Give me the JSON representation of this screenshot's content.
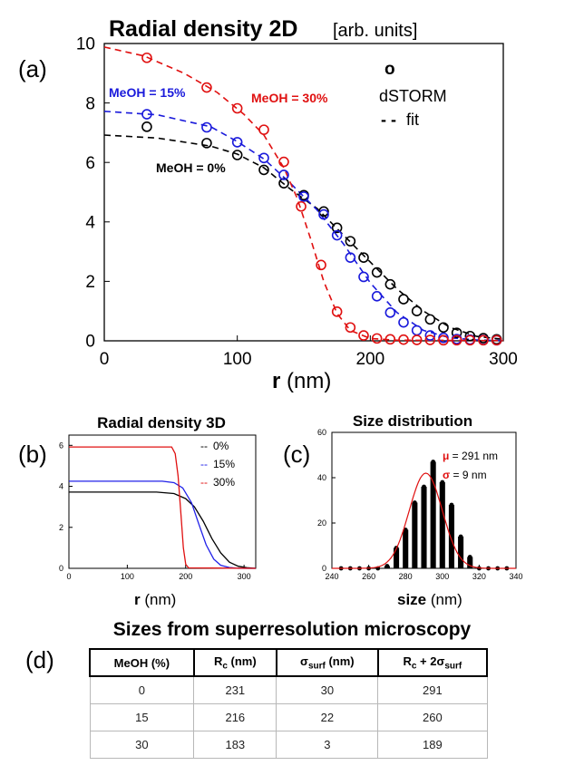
{
  "chart_data": [
    {
      "panel": "(a)",
      "type": "scatter",
      "title": "Radial density 2D",
      "units_note": "[arb. units]",
      "xlabel_bold": "r",
      "xlabel_rest": " (nm)",
      "xlim": [
        0,
        300
      ],
      "ylim": [
        0,
        10
      ],
      "xticks": [
        0,
        100,
        200,
        300
      ],
      "yticks": [
        0,
        2,
        4,
        6,
        8,
        10
      ],
      "legend": {
        "marker_symbol": "o",
        "marker_label": "dSTORM",
        "line_symbol": "- -",
        "line_label": "fit"
      },
      "series": [
        {
          "name": "MeOH = 0%",
          "color": "#000000",
          "points": [
            [
              32,
              7.2
            ],
            [
              77,
              6.65
            ],
            [
              100,
              6.25
            ],
            [
              120,
              5.75
            ],
            [
              135,
              5.3
            ],
            [
              150,
              4.9
            ],
            [
              165,
              4.35
            ],
            [
              175,
              3.8
            ],
            [
              185,
              3.35
            ],
            [
              195,
              2.8
            ],
            [
              205,
              2.3
            ],
            [
              215,
              1.9
            ],
            [
              225,
              1.4
            ],
            [
              235,
              1.0
            ],
            [
              245,
              0.72
            ],
            [
              255,
              0.45
            ],
            [
              265,
              0.27
            ],
            [
              275,
              0.16
            ],
            [
              285,
              0.09
            ],
            [
              295,
              0.05
            ]
          ],
          "fit": [
            [
              0,
              6.92
            ],
            [
              40,
              6.82
            ],
            [
              80,
              6.55
            ],
            [
              100,
              6.28
            ],
            [
              120,
              5.82
            ],
            [
              140,
              5.1
            ],
            [
              160,
              4.45
            ],
            [
              180,
              3.55
            ],
            [
              200,
              2.65
            ],
            [
              220,
              1.75
            ],
            [
              240,
              1.0
            ],
            [
              260,
              0.45
            ],
            [
              280,
              0.15
            ],
            [
              300,
              0.05
            ]
          ]
        },
        {
          "name": "MeOH = 15%",
          "color": "#1a1adb",
          "points": [
            [
              32,
              7.62
            ],
            [
              77,
              7.18
            ],
            [
              100,
              6.68
            ],
            [
              120,
              6.15
            ],
            [
              135,
              5.58
            ],
            [
              150,
              4.85
            ],
            [
              165,
              4.25
            ],
            [
              175,
              3.55
            ],
            [
              185,
              2.8
            ],
            [
              195,
              2.15
            ],
            [
              205,
              1.5
            ],
            [
              215,
              0.95
            ],
            [
              225,
              0.62
            ],
            [
              235,
              0.35
            ],
            [
              245,
              0.18
            ],
            [
              255,
              0.1
            ],
            [
              265,
              0.06
            ],
            [
              275,
              0.04
            ],
            [
              285,
              0.03
            ],
            [
              295,
              0.02
            ]
          ],
          "fit": [
            [
              0,
              7.72
            ],
            [
              40,
              7.6
            ],
            [
              80,
              7.2
            ],
            [
              100,
              6.7
            ],
            [
              120,
              6.12
            ],
            [
              140,
              5.3
            ],
            [
              160,
              4.4
            ],
            [
              180,
              3.25
            ],
            [
              200,
              1.95
            ],
            [
              220,
              0.95
            ],
            [
              240,
              0.35
            ],
            [
              260,
              0.1
            ],
            [
              280,
              0.03
            ],
            [
              300,
              0.01
            ]
          ]
        },
        {
          "name": "MeOH = 30%",
          "color": "#e01010",
          "points": [
            [
              32,
              9.52
            ],
            [
              77,
              8.52
            ],
            [
              100,
              7.82
            ],
            [
              120,
              7.1
            ],
            [
              135,
              6.02
            ],
            [
              148,
              4.52
            ],
            [
              163,
              2.55
            ],
            [
              175,
              0.98
            ],
            [
              185,
              0.45
            ],
            [
              195,
              0.18
            ],
            [
              205,
              0.08
            ],
            [
              215,
              0.05
            ],
            [
              225,
              0.04
            ],
            [
              235,
              0.03
            ],
            [
              245,
              0.03
            ],
            [
              255,
              0.02
            ],
            [
              265,
              0.02
            ],
            [
              275,
              0.02
            ],
            [
              285,
              0.02
            ],
            [
              295,
              0.02
            ]
          ],
          "fit": [
            [
              0,
              9.88
            ],
            [
              30,
              9.58
            ],
            [
              60,
              9.0
            ],
            [
              85,
              8.35
            ],
            [
              105,
              7.62
            ],
            [
              120,
              6.92
            ],
            [
              135,
              5.82
            ],
            [
              145,
              4.8
            ],
            [
              155,
              3.45
            ],
            [
              165,
              2.0
            ],
            [
              175,
              0.92
            ],
            [
              185,
              0.35
            ],
            [
              200,
              0.08
            ],
            [
              220,
              0.02
            ],
            [
              300,
              0.01
            ]
          ]
        }
      ]
    },
    {
      "panel": "(b)",
      "type": "line",
      "title": "Radial density 3D",
      "xlabel_bold": "r",
      "xlabel_rest": " (nm)",
      "xlim": [
        0,
        320
      ],
      "ylim": [
        0,
        6.5
      ],
      "xticks": [
        0,
        100,
        200,
        300
      ],
      "yticks": [
        0,
        2,
        4,
        6
      ],
      "legend_dash": "--",
      "series": [
        {
          "name": "0%",
          "color": "#000000",
          "points": [
            [
              0,
              3.72
            ],
            [
              150,
              3.72
            ],
            [
              180,
              3.65
            ],
            [
              200,
              3.4
            ],
            [
              215,
              3.0
            ],
            [
              230,
              2.3
            ],
            [
              245,
              1.45
            ],
            [
              260,
              0.75
            ],
            [
              275,
              0.3
            ],
            [
              290,
              0.1
            ],
            [
              305,
              0.03
            ],
            [
              320,
              0.0
            ]
          ]
        },
        {
          "name": "15%",
          "color": "#2020e8",
          "points": [
            [
              0,
              4.25
            ],
            [
              160,
              4.25
            ],
            [
              180,
              4.18
            ],
            [
              195,
              3.92
            ],
            [
              210,
              3.2
            ],
            [
              222,
              2.2
            ],
            [
              235,
              1.15
            ],
            [
              248,
              0.45
            ],
            [
              260,
              0.15
            ],
            [
              275,
              0.04
            ],
            [
              290,
              0.0
            ],
            [
              320,
              0.0
            ]
          ]
        },
        {
          "name": "30%",
          "color": "#e01010",
          "points": [
            [
              0,
              5.92
            ],
            [
              176,
              5.92
            ],
            [
              182,
              5.6
            ],
            [
              187,
              4.5
            ],
            [
              192,
              2.6
            ],
            [
              196,
              1.0
            ],
            [
              200,
              0.2
            ],
            [
              205,
              0.02
            ],
            [
              320,
              0.0
            ]
          ]
        }
      ]
    },
    {
      "panel": "(c)",
      "type": "bar",
      "title": "Size distribution",
      "xlabel_bold": "size",
      "xlabel_rest": " (nm)",
      "xlim": [
        240,
        340
      ],
      "ylim": [
        0,
        60
      ],
      "xticks": [
        240,
        260,
        280,
        300,
        320,
        340
      ],
      "yticks": [
        0,
        20,
        40,
        60
      ],
      "x": [
        245,
        250,
        255,
        260,
        265,
        270,
        275,
        280,
        285,
        290,
        295,
        300,
        305,
        310,
        315,
        320,
        325,
        330,
        335
      ],
      "values": [
        0,
        0,
        0,
        0,
        0,
        1,
        9,
        17,
        29,
        36,
        47,
        38,
        28,
        14,
        5,
        0,
        0,
        0,
        0
      ],
      "fit_mu": 291,
      "fit_sigma": 9,
      "fit_peak": 42,
      "annotations": [
        {
          "symbol": "μ",
          "text": " = 291 nm"
        },
        {
          "symbol": "σ",
          "text": " = 9 nm"
        }
      ]
    }
  ],
  "series_labels_a": {
    "s0": "MeOH = 0%",
    "s1": "MeOH = 15%",
    "s2": "MeOH = 30%"
  },
  "panel_labels": {
    "a": "(a)",
    "b": "(b)",
    "c": "(c)",
    "d": "(d)"
  },
  "table": {
    "title": "Sizes from superresolution microscopy",
    "headers": {
      "meoh": "MeOH (%)",
      "rc_main": "R",
      "rc_sub": "c",
      "rc_unit": " (nm)",
      "sig_main": "σ",
      "sig_sub": "surf",
      "sig_unit": " (nm)",
      "sum_main": "R",
      "sum_sub": "c",
      "sum_mid": " + 2σ",
      "sum_sub2": "surf"
    },
    "rows": [
      [
        "0",
        "231",
        "30",
        "291"
      ],
      [
        "15",
        "216",
        "22",
        "260"
      ],
      [
        "30",
        "183",
        "3",
        "189"
      ]
    ]
  }
}
